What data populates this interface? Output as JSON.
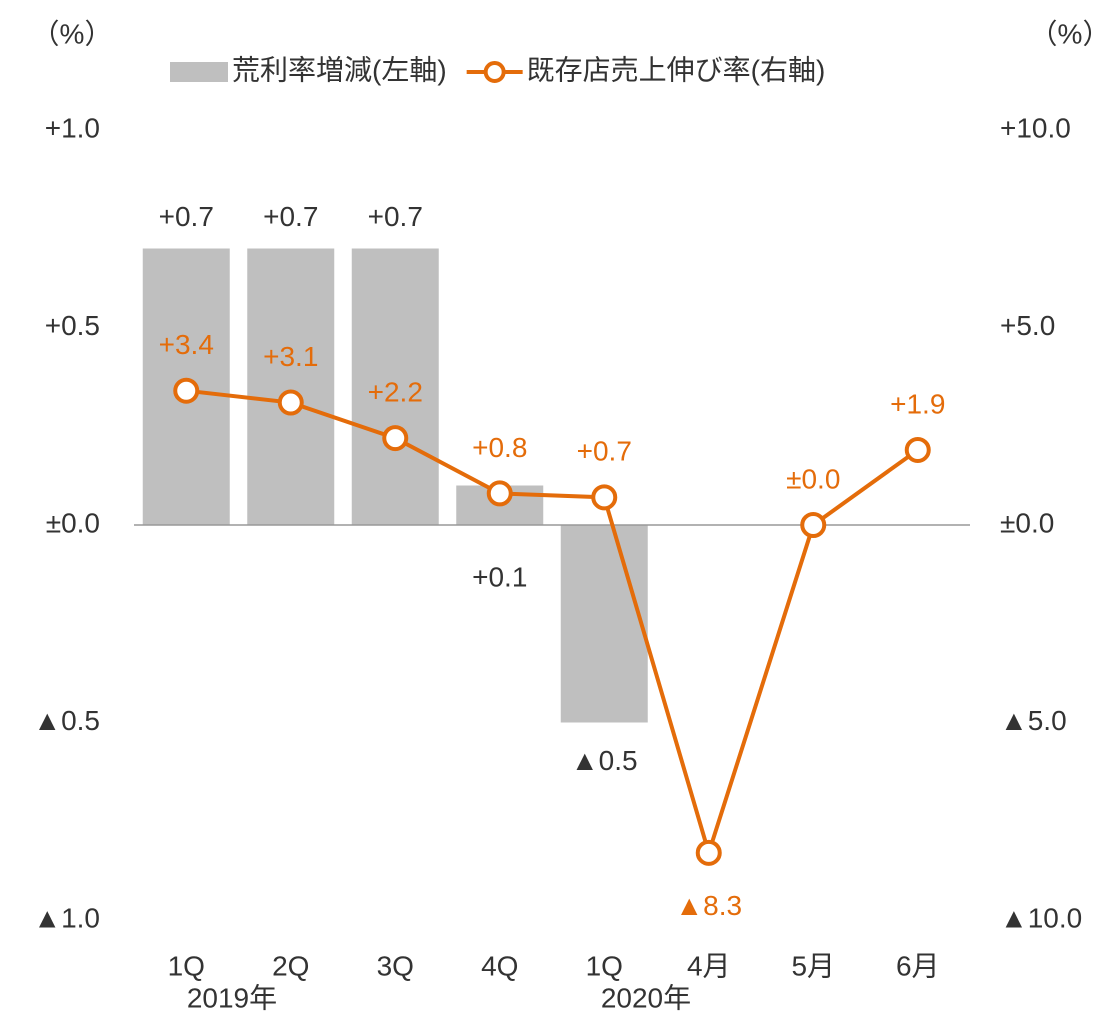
{
  "chart_data": {
    "type": "bar_line",
    "categories": [
      "1Q",
      "2Q",
      "3Q",
      "4Q",
      "1Q",
      "4月",
      "5月",
      "6月"
    ],
    "x_groups": [
      "2019年",
      "2020年"
    ],
    "y_unit": "（%）",
    "y2_unit": "（%）",
    "series": [
      {
        "name": "荒利率増減(左軸)",
        "type": "bar",
        "color": "#bfbfbf",
        "values": [
          0.7,
          0.7,
          0.7,
          0.1,
          -0.5,
          null,
          null,
          null
        ],
        "value_labels": [
          "+0.7",
          "+0.7",
          "+0.7",
          "+0.1",
          "▲0.5",
          null,
          null,
          null
        ]
      },
      {
        "name": "既存店売上伸び率(右軸)",
        "type": "line",
        "axis": "y2",
        "color": "#e46c0a",
        "values": [
          3.4,
          3.1,
          2.2,
          0.8,
          0.7,
          -8.3,
          0.0,
          1.9
        ],
        "value_labels": [
          "+3.4",
          "+3.1",
          "+2.2",
          "+0.8",
          "+0.7",
          "▲8.3",
          "±0.0",
          "+1.9"
        ]
      }
    ],
    "ylim": [
      -1,
      1
    ],
    "yticks": [
      {
        "value": -1,
        "label": "▲1.0"
      },
      {
        "value": -0.5,
        "label": "▲0.5"
      },
      {
        "value": 0,
        "label": "±0.0"
      },
      {
        "value": 0.5,
        "label": "+0.5"
      },
      {
        "value": 1,
        "label": "+1.0"
      }
    ],
    "y2lim": [
      -10,
      10
    ],
    "y2ticks": [
      {
        "value": -10,
        "label": "▲10.0"
      },
      {
        "value": -5,
        "label": "▲5.0"
      },
      {
        "value": 0,
        "label": "±0.0"
      },
      {
        "value": 5,
        "label": "+5.0"
      },
      {
        "value": 10,
        "label": "+10.0"
      }
    ],
    "legend": "top"
  }
}
